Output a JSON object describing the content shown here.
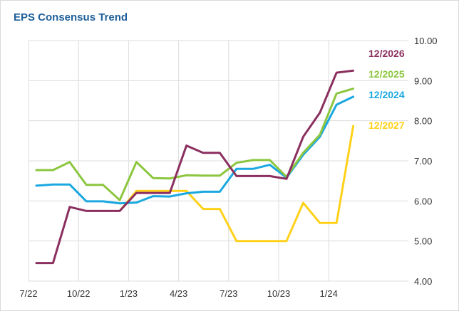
{
  "title": "EPS Consensus Trend",
  "chart_data": {
    "type": "line",
    "title": "EPS Consensus Trend",
    "xlabel": "",
    "ylabel": "",
    "x_ticks": [
      "7/22",
      "10/22",
      "1/23",
      "4/23",
      "7/23",
      "10/23",
      "1/24"
    ],
    "y_ticks": [
      "10.00",
      "9.00",
      "8.00",
      "7.00",
      "6.00",
      "5.00",
      "4.00"
    ],
    "ylim": [
      4.0,
      10.0
    ],
    "grid": true,
    "legend": "right-inline",
    "x": [
      "2022-07",
      "2022-08",
      "2022-09",
      "2022-10",
      "2022-11",
      "2022-12",
      "2023-01",
      "2023-02",
      "2023-03",
      "2023-04",
      "2023-05",
      "2023-06",
      "2023-07",
      "2023-08",
      "2023-09",
      "2023-10",
      "2023-11",
      "2023-12",
      "2024-01",
      "2024-02"
    ],
    "series": [
      {
        "name": "12/2026",
        "color": "#8b2f5f",
        "values": [
          4.45,
          4.45,
          5.85,
          5.75,
          5.75,
          5.75,
          6.2,
          6.2,
          6.2,
          7.38,
          7.2,
          7.2,
          6.62,
          6.62,
          6.62,
          6.55,
          7.6,
          8.2,
          9.2,
          9.25
        ]
      },
      {
        "name": "12/2025",
        "color": "#8cc63f",
        "values": [
          6.77,
          6.77,
          6.97,
          6.4,
          6.4,
          6.02,
          6.97,
          6.57,
          6.56,
          6.64,
          6.63,
          6.63,
          6.95,
          7.02,
          7.02,
          6.6,
          7.2,
          7.65,
          8.68,
          8.8
        ]
      },
      {
        "name": "12/2024",
        "color": "#1ba8e0",
        "values": [
          6.38,
          6.41,
          6.41,
          5.99,
          5.99,
          5.94,
          5.96,
          6.12,
          6.11,
          6.19,
          6.23,
          6.23,
          6.8,
          6.8,
          6.9,
          6.58,
          7.15,
          7.6,
          8.4,
          8.6
        ]
      },
      {
        "name": "12/2027",
        "color": "#ffd11a",
        "values": [
          null,
          null,
          null,
          null,
          null,
          5.75,
          6.25,
          6.25,
          6.25,
          6.25,
          5.8,
          5.8,
          5.0,
          5.0,
          5.0,
          5.0,
          5.95,
          5.45,
          5.45,
          7.87
        ]
      }
    ]
  }
}
